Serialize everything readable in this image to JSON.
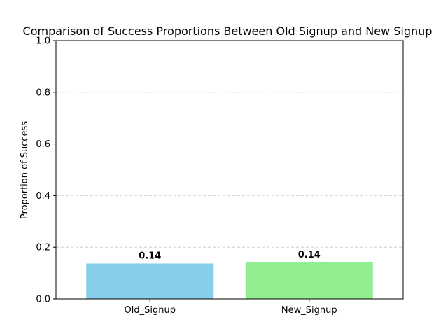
{
  "chart_data": {
    "type": "bar",
    "title": "Comparison of Success Proportions Between Old Signup and New Signup",
    "xlabel": "",
    "ylabel": "Proportion of Success",
    "categories": [
      "Old_Signup",
      "New_Signup"
    ],
    "values": [
      0.137,
      0.141
    ],
    "data_labels": [
      "0.14",
      "0.14"
    ],
    "colors": [
      "#87ceeb",
      "#90ee90"
    ],
    "ylim": [
      0,
      1.0
    ],
    "yticks": [
      0.0,
      0.2,
      0.4,
      0.6,
      0.8,
      1.0
    ],
    "ytick_labels": [
      "0.0",
      "0.2",
      "0.4",
      "0.6",
      "0.8",
      "1.0"
    ],
    "grid": "y-dashed",
    "grid_color": "#c8c8c8"
  }
}
